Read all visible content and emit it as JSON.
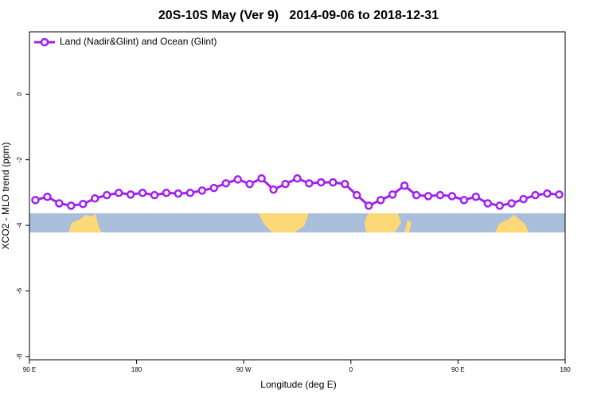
{
  "chart_data": {
    "type": "line",
    "title": "20S-10S May (Ver 9)   2014-09-06 to 2018-12-31",
    "x_label": "Longitude (deg E)",
    "y_label": "XCO2 - MLO trend (ppm)",
    "x": [
      95,
      105,
      115,
      125,
      135,
      145,
      155,
      165,
      175,
      185,
      195,
      205,
      215,
      225,
      235,
      245,
      255,
      265,
      275,
      285,
      295,
      305,
      315,
      325,
      335,
      345,
      355,
      365,
      375,
      385,
      395,
      405,
      415,
      425,
      435,
      445,
      455,
      465,
      475,
      485,
      495,
      505,
      515,
      525,
      535
    ],
    "series": [
      {
        "name": "Land (Nadir&Glint) and Ocean (Glint)",
        "color": "#a020f0",
        "values": [
          -3.23,
          -3.13,
          -3.33,
          -3.4,
          -3.35,
          -3.18,
          -3.08,
          -3.01,
          -3.06,
          -3.01,
          -3.08,
          -3.01,
          -3.03,
          -3.01,
          -2.94,
          -2.86,
          -2.72,
          -2.6,
          -2.74,
          -2.57,
          -2.91,
          -2.74,
          -2.57,
          -2.72,
          -2.69,
          -2.69,
          -2.74,
          -3.08,
          -3.4,
          -3.23,
          -3.06,
          -2.79,
          -3.08,
          -3.11,
          -3.08,
          -3.11,
          -3.23,
          -3.13,
          -3.33,
          -3.4,
          -3.33,
          -3.2,
          -3.08,
          -3.03,
          -3.06
        ]
      }
    ],
    "xlim": [
      90,
      540
    ],
    "xticks": [
      {
        "value": 90,
        "label": "90 E"
      },
      180,
      {
        "value": 270,
        "label": "90 W"
      },
      {
        "value": 360,
        "label": "0"
      },
      {
        "value": 450,
        "label": "90 E"
      },
      {
        "value": 540,
        "label": "180"
      }
    ],
    "ylim": [
      -8.1,
      1.9
    ],
    "yticks": [
      0,
      -2,
      -4,
      -6,
      -8
    ],
    "grid": false,
    "legend": "top-left"
  }
}
